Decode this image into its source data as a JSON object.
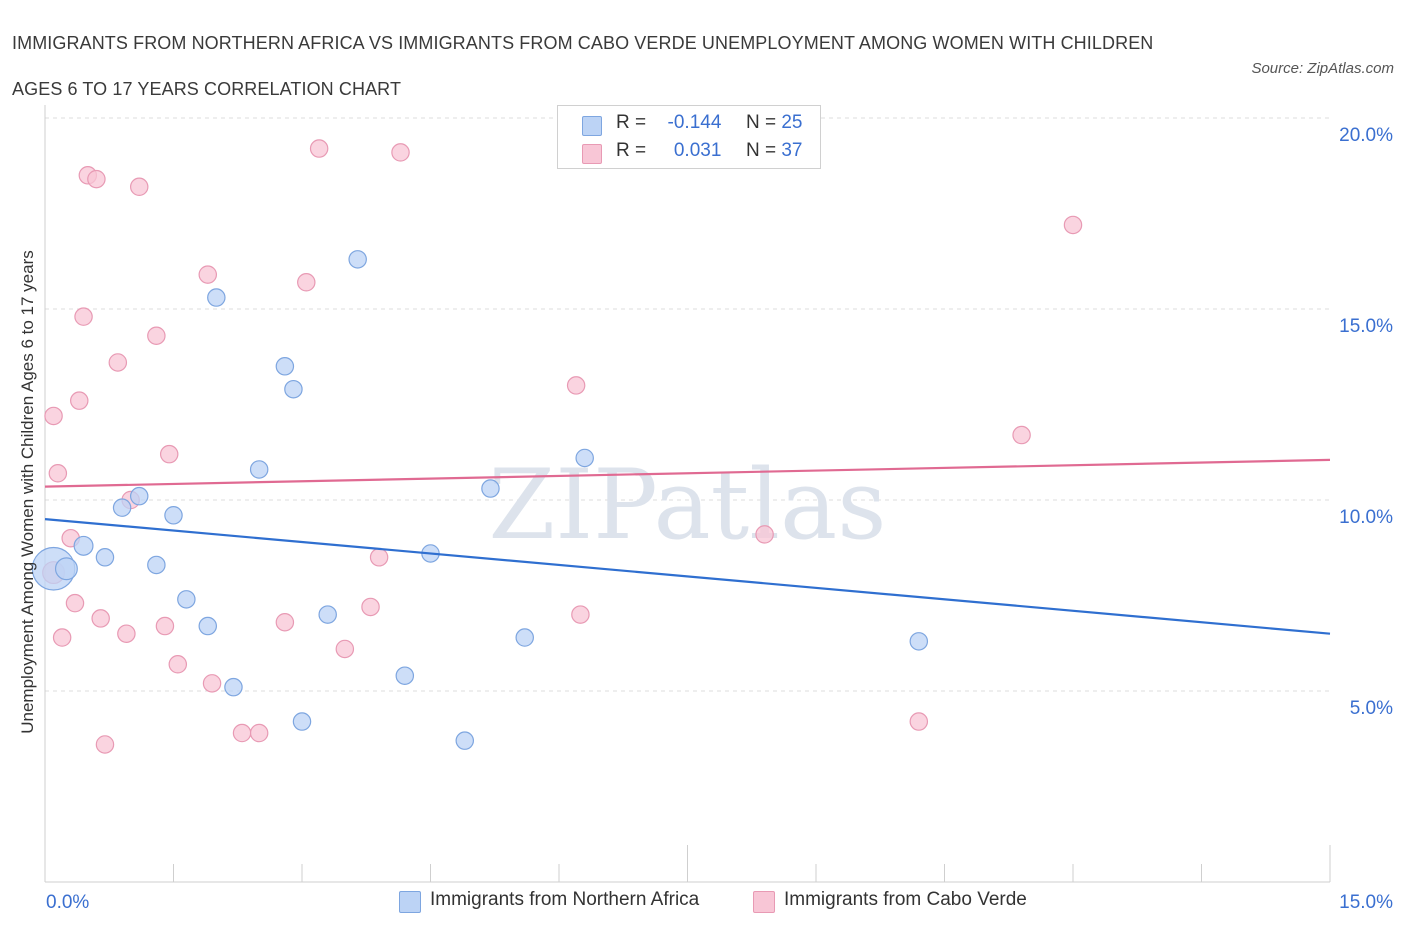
{
  "title_line1": "IMMIGRANTS FROM NORTHERN AFRICA VS IMMIGRANTS FROM CABO VERDE UNEMPLOYMENT AMONG WOMEN WITH CHILDREN",
  "title_line2": "AGES 6 TO 17 YEARS CORRELATION CHART",
  "source": "Source: ZipAtlas.com",
  "watermark": "ZIPatlas",
  "colors": {
    "blue_fill": "#bcd3f5",
    "blue_stroke": "#7ea6e0",
    "blue_line": "#2f6fd0",
    "pink_fill": "#f8c6d6",
    "pink_stroke": "#e89ab4",
    "pink_line": "#e06a92",
    "grid": "#dcdcdc",
    "tick_text": "#3a6fd0"
  },
  "legend": {
    "r_label": "R =",
    "n_label": "N =",
    "blue": {
      "r": "-0.144",
      "n": "25"
    },
    "pink": {
      "r": "0.031",
      "n": "37"
    }
  },
  "chart_data": {
    "type": "scatter",
    "title": "IMMIGRANTS FROM NORTHERN AFRICA VS IMMIGRANTS FROM CABO VERDE UNEMPLOYMENT AMONG WOMEN WITH CHILDREN AGES 6 TO 17 YEARS CORRELATION CHART",
    "xlabel": "",
    "ylabel": "Unemployment Among Women with Children Ages 6 to 17 years",
    "xlim": [
      0,
      15
    ],
    "ylim": [
      0,
      20
    ],
    "x_tick_labels": [
      "0.0%",
      "15.0%"
    ],
    "y_ticks": [
      5,
      10,
      15,
      20
    ],
    "y_tick_labels": [
      "5.0%",
      "10.0%",
      "15.0%",
      "20.0%"
    ],
    "grid": true,
    "series": [
      {
        "name": "Immigrants from Northern Africa",
        "color": "blue",
        "r": -0.144,
        "n": 25,
        "trend": [
          [
            0,
            9.5
          ],
          [
            15,
            6.5
          ]
        ],
        "points": [
          [
            0.1,
            8.2,
            28
          ],
          [
            0.25,
            8.2,
            14
          ],
          [
            0.45,
            8.8,
            12
          ],
          [
            0.7,
            8.5,
            11
          ],
          [
            0.9,
            9.8,
            11
          ],
          [
            1.1,
            10.1,
            11
          ],
          [
            1.3,
            8.3,
            11
          ],
          [
            1.5,
            9.6,
            11
          ],
          [
            1.65,
            7.4,
            11
          ],
          [
            2.0,
            15.3,
            11
          ],
          [
            1.9,
            6.7,
            11
          ],
          [
            2.2,
            5.1,
            11
          ],
          [
            2.5,
            10.8,
            11
          ],
          [
            2.8,
            13.5,
            11
          ],
          [
            2.9,
            12.9,
            11
          ],
          [
            3.0,
            4.2,
            11
          ],
          [
            3.3,
            7.0,
            11
          ],
          [
            3.65,
            16.3,
            11
          ],
          [
            4.2,
            5.4,
            11
          ],
          [
            4.5,
            8.6,
            11
          ],
          [
            4.9,
            3.7,
            11
          ],
          [
            5.2,
            10.3,
            11
          ],
          [
            5.6,
            6.4,
            11
          ],
          [
            6.3,
            11.1,
            11
          ],
          [
            10.2,
            6.3,
            11
          ]
        ]
      },
      {
        "name": "Immigrants from Cabo Verde",
        "color": "pink",
        "r": 0.031,
        "n": 37,
        "trend": [
          [
            0,
            10.35
          ],
          [
            15,
            11.05
          ]
        ],
        "points": [
          [
            0.1,
            8.1,
            14
          ],
          [
            0.1,
            12.2,
            11
          ],
          [
            0.15,
            10.7,
            11
          ],
          [
            0.2,
            6.4,
            11
          ],
          [
            0.3,
            9.0,
            11
          ],
          [
            0.35,
            7.3,
            11
          ],
          [
            0.4,
            12.6,
            11
          ],
          [
            0.45,
            14.8,
            11
          ],
          [
            0.5,
            18.5,
            11
          ],
          [
            0.6,
            18.4,
            11
          ],
          [
            0.65,
            6.9,
            11
          ],
          [
            0.7,
            3.6,
            11
          ],
          [
            0.85,
            13.6,
            11
          ],
          [
            0.95,
            6.5,
            11
          ],
          [
            1.0,
            10.0,
            11
          ],
          [
            1.1,
            18.2,
            11
          ],
          [
            1.3,
            14.3,
            11
          ],
          [
            1.4,
            6.7,
            11
          ],
          [
            1.45,
            11.2,
            11
          ],
          [
            1.55,
            5.7,
            11
          ],
          [
            1.9,
            15.9,
            11
          ],
          [
            1.95,
            5.2,
            11
          ],
          [
            2.3,
            3.9,
            11
          ],
          [
            2.5,
            3.9,
            11
          ],
          [
            2.8,
            6.8,
            11
          ],
          [
            3.05,
            15.7,
            11
          ],
          [
            3.2,
            19.2,
            11
          ],
          [
            3.5,
            6.1,
            11
          ],
          [
            3.8,
            7.2,
            11
          ],
          [
            3.9,
            8.5,
            11
          ],
          [
            4.15,
            19.1,
            11
          ],
          [
            6.2,
            13.0,
            11
          ],
          [
            6.25,
            7.0,
            11
          ],
          [
            8.4,
            9.1,
            11
          ],
          [
            10.2,
            4.2,
            11
          ],
          [
            11.4,
            11.7,
            11
          ],
          [
            12.0,
            17.2,
            11
          ]
        ]
      }
    ]
  },
  "bottom_legend": {
    "blue_label": "Immigrants from Northern Africa",
    "pink_label": "Immigrants from Cabo Verde"
  }
}
